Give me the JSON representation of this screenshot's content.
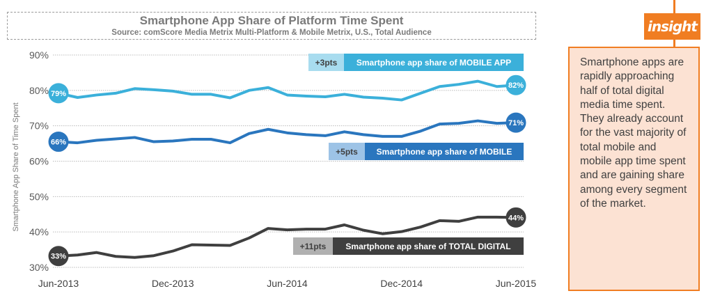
{
  "chart_data": {
    "type": "line",
    "title": "Smartphone App Share of Platform Time Spent",
    "subtitle": "Source: comScore Media Metrix Multi-Platform & Mobile Metrix, U.S., Total Audience",
    "ylabel": "Smartphone App Share of Time Spent",
    "xlabel": "",
    "ylim": [
      30,
      90
    ],
    "yticks": [
      "30%",
      "40%",
      "50%",
      "60%",
      "70%",
      "80%",
      "90%"
    ],
    "xticks": [
      "Jun-2013",
      "Dec-2013",
      "Jun-2014",
      "Dec-2014",
      "Jun-2015"
    ],
    "x": [
      "Jun-2013",
      "Jul-2013",
      "Aug-2013",
      "Sep-2013",
      "Oct-2013",
      "Nov-2013",
      "Dec-2013",
      "Jan-2014",
      "Feb-2014",
      "Mar-2014",
      "Apr-2014",
      "May-2014",
      "Jun-2014",
      "Jul-2014",
      "Aug-2014",
      "Sep-2014",
      "Oct-2014",
      "Nov-2014",
      "Dec-2014",
      "Jan-2015",
      "Feb-2015",
      "Mar-2015",
      "Apr-2015",
      "May-2015",
      "Jun-2015"
    ],
    "grid": true,
    "series": [
      {
        "name": "Smartphone app share of MOBILE APP",
        "change": "+3pts",
        "start_label": "79%",
        "end_label": "82%",
        "color": "#3BB0DA",
        "tag_color": "#A8DCEF",
        "values": [
          79.2,
          78.0,
          78.7,
          79.2,
          80.5,
          80.2,
          79.8,
          78.9,
          78.9,
          77.9,
          80.0,
          80.8,
          78.7,
          78.4,
          78.2,
          78.9,
          78.1,
          77.8,
          77.3,
          79.2,
          81.1,
          81.7,
          82.6,
          81.1,
          81.5
        ]
      },
      {
        "name": "Smartphone app share of MOBILE",
        "change": "+5pts",
        "start_label": "66%",
        "end_label": "71%",
        "color": "#2A76BE",
        "tag_color": "#9DC3E6",
        "values": [
          65.5,
          65.2,
          65.9,
          66.3,
          66.7,
          65.5,
          65.7,
          66.2,
          66.2,
          65.2,
          67.8,
          69.0,
          68.0,
          67.5,
          67.2,
          68.3,
          67.5,
          67.0,
          67.0,
          68.5,
          70.5,
          70.7,
          71.4,
          70.7,
          70.9
        ]
      },
      {
        "name": "Smartphone app share of TOTAL DIGITAL",
        "change": "+11pts",
        "start_label": "33%",
        "end_label": "44%",
        "color": "#3F3F3F",
        "tag_color": "#B0B0B0",
        "values": [
          33.2,
          33.5,
          34.2,
          33.1,
          32.8,
          33.3,
          34.6,
          36.4,
          36.3,
          36.2,
          38.3,
          41.0,
          40.6,
          40.8,
          40.8,
          42.0,
          40.5,
          39.5,
          40.1,
          41.4,
          43.2,
          43.0,
          44.2,
          44.2,
          44.1
        ]
      }
    ]
  },
  "insight": {
    "tag": "insight",
    "text": "Smartphone apps are rapidly approaching half of total digital media time spent. They already account for the vast majority of total mobile and mobile app time spent and are gaining share among every segment of the market.",
    "accent": "#F07D22"
  }
}
